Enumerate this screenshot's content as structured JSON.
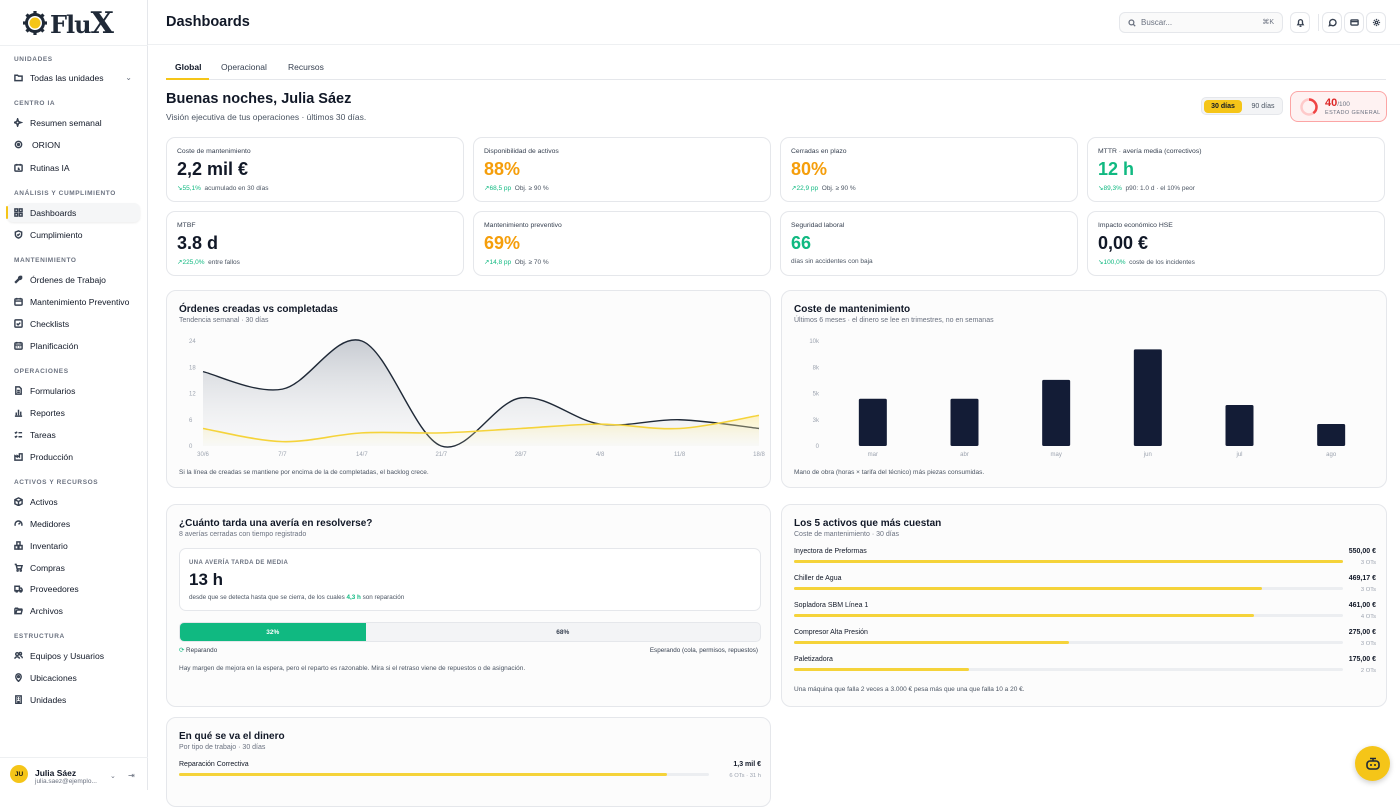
{
  "brand": {
    "name": "Flu",
    "name_x": "X"
  },
  "sidebar": {
    "unidades_title": "UNIDADES",
    "unidades_select": "Todas las unidades",
    "sections": [
      {
        "title": "CENTRO IA",
        "items": [
          "Resumen semanal",
          "ORION",
          "Rutinas IA"
        ]
      },
      {
        "title": "ANÁLISIS Y CUMPLIMIENTO",
        "items": [
          "Dashboards",
          "Cumplimiento"
        ]
      },
      {
        "title": "MANTENIMIENTO",
        "items": [
          "Órdenes de Trabajo",
          "Mantenimiento Preventivo",
          "Checklists",
          "Planificación"
        ]
      },
      {
        "title": "OPERACIONES",
        "items": [
          "Formularios",
          "Reportes",
          "Tareas",
          "Producción"
        ]
      },
      {
        "title": "ACTIVOS Y RECURSOS",
        "items": [
          "Activos",
          "Medidores",
          "Inventario",
          "Compras",
          "Proveedores",
          "Archivos"
        ]
      },
      {
        "title": "ESTRUCTURA",
        "items": [
          "Equipos y Usuarios",
          "Ubicaciones",
          "Unidades"
        ]
      }
    ],
    "user": {
      "initials": "JU",
      "name": "Julia Sáez",
      "email": "julia.saez@ejemplo..."
    }
  },
  "header": {
    "title": "Dashboards",
    "search_placeholder": "Buscar...",
    "search_shortcut": "⌘K"
  },
  "tabs": [
    "Global",
    "Operacional",
    "Recursos"
  ],
  "greeting": {
    "title": "Buenas noches, Julia Sáez",
    "subtitle": "Visión ejecutiva de tus operaciones · últimos 30 días."
  },
  "range": {
    "a": "30 días",
    "b": "90 días"
  },
  "health": {
    "score": "40",
    "of": "/100",
    "label": "ESTADO GENERAL",
    "value": 0.4
  },
  "kpis": [
    {
      "label": "Coste de mantenimiento",
      "value": "2,2 mil €",
      "delta": "55,1%",
      "note": "acumulado en 30 días",
      "color": "default"
    },
    {
      "label": "Disponibilidad de activos",
      "value": "88%",
      "delta": "68,5 pp",
      "note": "Obj. ≥ 90 %",
      "color": "amber"
    },
    {
      "label": "Cerradas en plazo",
      "value": "80%",
      "delta": "22,9 pp",
      "note": "Obj. ≥ 90 %",
      "color": "amber"
    },
    {
      "label": "MTTR · avería media (correctivos)",
      "value": "12 h",
      "delta": "89,3%",
      "note": "p90: 1.0 d · el 10% peor",
      "color": "green"
    },
    {
      "label": "MTBF",
      "value": "3.8 d",
      "delta": "225,0%",
      "note": "entre fallos",
      "color": "default"
    },
    {
      "label": "Mantenimiento preventivo",
      "value": "69%",
      "delta": "14,8 pp",
      "note": "Obj. ≥ 70 %",
      "color": "amber"
    },
    {
      "label": "Seguridad laboral",
      "value": "66",
      "delta": "",
      "note": "días sin accidentes con baja",
      "color": "green"
    },
    {
      "label": "Impacto económico HSE",
      "value": "0,00 €",
      "delta": "100,0%",
      "note": "coste de los incidentes",
      "color": "default"
    }
  ],
  "line_card": {
    "title": "Órdenes creadas vs completadas",
    "subtitle": "Tendencia semanal · 30 días",
    "footer": "Si la línea de creadas se mantiene por encima de la de completadas, el backlog crece."
  },
  "bar_card": {
    "title": "Coste de mantenimiento",
    "subtitle": "Últimos 6 meses · el dinero se lee en trimestres, no en semanas",
    "footer": "Mano de obra (horas × tarifa del técnico) más piezas consumidas."
  },
  "chart_data": [
    {
      "type": "line",
      "x": [
        "30/6",
        "7/7",
        "14/7",
        "21/7",
        "28/7",
        "4/8",
        "11/8",
        "18/8"
      ],
      "yticks": [
        "24",
        "18",
        "12",
        "6",
        "0"
      ],
      "ylim": [
        0,
        24
      ],
      "series": [
        {
          "values": [
            17,
            13,
            24,
            0,
            11,
            5,
            6,
            4
          ],
          "color": "#1f2937"
        },
        {
          "values": [
            4,
            1,
            3,
            3,
            4,
            5,
            4,
            7
          ],
          "color": "#f5d33a"
        }
      ]
    },
    {
      "type": "bar",
      "categories": [
        "mar",
        "abr",
        "may",
        "jun",
        "jul",
        "ago"
      ],
      "values": [
        4500,
        4500,
        6300,
        9200,
        3900,
        2100
      ],
      "yticks": [
        "10k",
        "8k",
        "5k",
        "3k",
        "0"
      ],
      "ylim": [
        0,
        10000
      ],
      "color": "#131c36"
    }
  ],
  "mttr_card": {
    "title": "¿Cuánto tarda una avería en resolverse?",
    "subtitle": "8 averías cerradas con tiempo registrado",
    "box_label": "UNA AVERÍA TARDA DE MEDIA",
    "box_value": "13 h",
    "box_desc_a": "desde que se detecta hasta que se cierra, de los cuales ",
    "box_desc_b": "4,3 h",
    "box_desc_c": " son reparación",
    "split_a": "32%",
    "split_b": "68%",
    "legend_a": "Reparando",
    "legend_b": "Esperando (cola, permisos, repuestos)",
    "footer": "Hay margen de mejora en la espera, pero el reparto es razonable. Mira si el retraso viene de repuestos o de asignación."
  },
  "top5_card": {
    "title": "Los 5 activos que más cuestan",
    "subtitle": "Coste de mantenimiento · 30 días",
    "items": [
      {
        "name": "Inyectora de Preformas",
        "value": "550,00 €",
        "sub": "3 OTs",
        "pct": 1.0
      },
      {
        "name": "Chiller de Agua",
        "value": "469,17 €",
        "sub": "3 OTs",
        "pct": 0.853
      },
      {
        "name": "Sopladora SBM Línea 1",
        "value": "461,00 €",
        "sub": "4 OTs",
        "pct": 0.838
      },
      {
        "name": "Compresor Alta Presión",
        "value": "275,00 €",
        "sub": "3 OTs",
        "pct": 0.5
      },
      {
        "name": "Paletizadora",
        "value": "175,00 €",
        "sub": "2 OTs",
        "pct": 0.318
      }
    ],
    "footer": "Una máquina que falla 2 veces a 3.000 € pesa más que una que falla 10 a 20 €."
  },
  "money_card": {
    "title": "En qué se va el dinero",
    "subtitle": "Por tipo de trabajo · 30 días",
    "items": [
      {
        "name": "Reparación Correctiva",
        "value": "1,3 mil €",
        "sub": "6 OTs · 31 h",
        "pct": 0.92
      }
    ]
  }
}
